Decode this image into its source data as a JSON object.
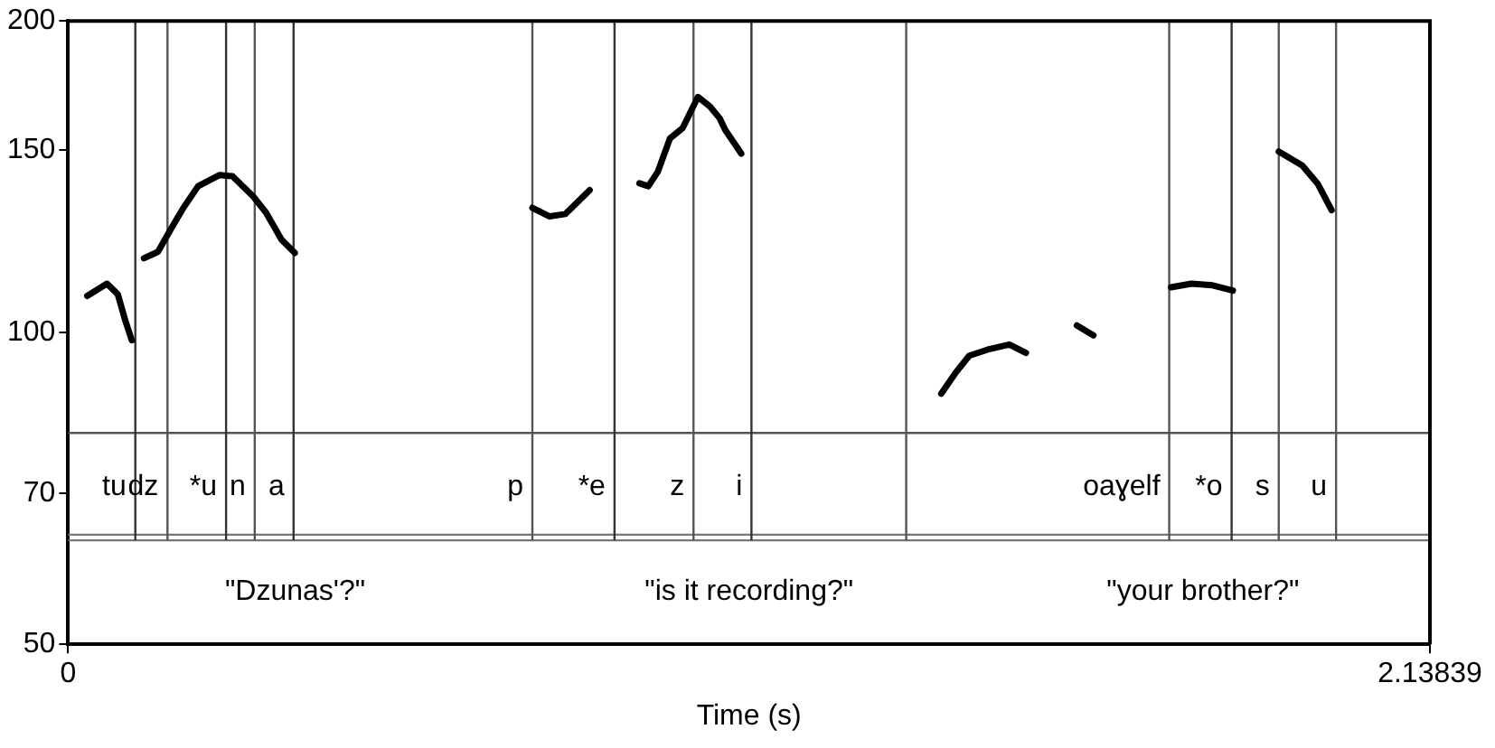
{
  "chart_data": {
    "type": "line",
    "xlabel": "Time (s)",
    "xlim": [
      0,
      2.13839
    ],
    "xticks": [
      0,
      2.13839
    ],
    "ylim": [
      50,
      200
    ],
    "yticks": [
      50,
      70,
      100,
      150,
      200
    ],
    "log": "y",
    "grid": false,
    "legend": false,
    "marker": "none",
    "line_style": "solid",
    "series": [
      {
        "color": "#000000",
        "x": [
          0.03,
          0.061,
          0.078,
          0.09,
          0.1
        ],
        "values": [
          108.5,
          111.5,
          108.9,
          102.6,
          98.3
        ]
      },
      {
        "color": "#000000",
        "x": [
          0.119,
          0.141,
          0.161,
          0.18,
          0.204,
          0.238,
          0.258,
          0.291,
          0.311,
          0.335,
          0.356
        ],
        "values": [
          118,
          119.7,
          125.8,
          131.7,
          138.5,
          142,
          141.6,
          135.3,
          130.5,
          123,
          119.4
        ]
      },
      {
        "color": "#000000",
        "x": [
          0.729,
          0.756,
          0.781,
          0.819
        ],
        "values": [
          132,
          129.5,
          130.2,
          137.3
        ]
      },
      {
        "color": "#000000",
        "x": [
          0.897,
          0.911,
          0.926,
          0.945,
          0.965,
          0.989,
          1.008,
          1.023,
          1.032,
          1.057
        ],
        "values": [
          139.4,
          138.5,
          143,
          154,
          157.6,
          168.9,
          165.3,
          161.1,
          156.9,
          148.9
        ]
      },
      {
        "color": "#000000",
        "x": [
          1.371,
          1.395,
          1.415,
          1.444,
          1.478,
          1.504
        ],
        "values": [
          87.3,
          91.7,
          95,
          96.3,
          97.4,
          95.6
        ]
      },
      {
        "color": "#000000",
        "x": [
          1.584,
          1.61
        ],
        "values": [
          101.6,
          99.4
        ]
      },
      {
        "color": "#000000",
        "x": [
          1.732,
          1.764,
          1.797,
          1.829
        ],
        "values": [
          110.6,
          111.5,
          111.1,
          109.8
        ]
      },
      {
        "color": "#000000",
        "x": [
          1.901,
          1.938,
          1.962,
          1.984
        ],
        "values": [
          149.6,
          145,
          139.3,
          131.3
        ]
      }
    ],
    "ref_lines": [
      {
        "axis": "y",
        "value": 80,
        "color": "#555555"
      },
      {
        "axis": "y",
        "value": 63.8,
        "color": "#777777"
      },
      {
        "axis": "y",
        "value": 63,
        "color": "#777777"
      },
      {
        "axis": "x",
        "value": 0.1055,
        "color": "#333333",
        "label": "tu"
      },
      {
        "axis": "x",
        "value": 0.156,
        "color": "#555555",
        "label": "dz"
      },
      {
        "axis": "x",
        "value": 0.248,
        "color": "#333333",
        "label": "*u"
      },
      {
        "axis": "x",
        "value": 0.293,
        "color": "#555555",
        "label": "n"
      },
      {
        "axis": "x",
        "value": 0.354,
        "color": "#333333",
        "label": "a"
      },
      {
        "axis": "x",
        "value": 0.729,
        "color": "#555555",
        "label": "p"
      },
      {
        "axis": "x",
        "value": 0.858,
        "color": "#333333",
        "label": "*e"
      },
      {
        "axis": "x",
        "value": 0.982,
        "color": "#555555",
        "label": "z"
      },
      {
        "axis": "x",
        "value": 1.073,
        "color": "#333333",
        "label": "i"
      },
      {
        "axis": "x",
        "value": 1.316,
        "color": "#555555"
      },
      {
        "axis": "x",
        "value": 1.729,
        "color": "#555555",
        "label": "oaɣelf"
      },
      {
        "axis": "x",
        "value": 1.827,
        "color": "#333333",
        "label": "*o"
      },
      {
        "axis": "x",
        "value": 1.901,
        "color": "#555555",
        "label": "s"
      },
      {
        "axis": "x",
        "value": 1.991,
        "color": "#555555",
        "label": "u"
      }
    ],
    "annotations": [
      "\"Dzunas'?\"",
      "\"is it recording?\"",
      "\"your brother?\""
    ]
  }
}
